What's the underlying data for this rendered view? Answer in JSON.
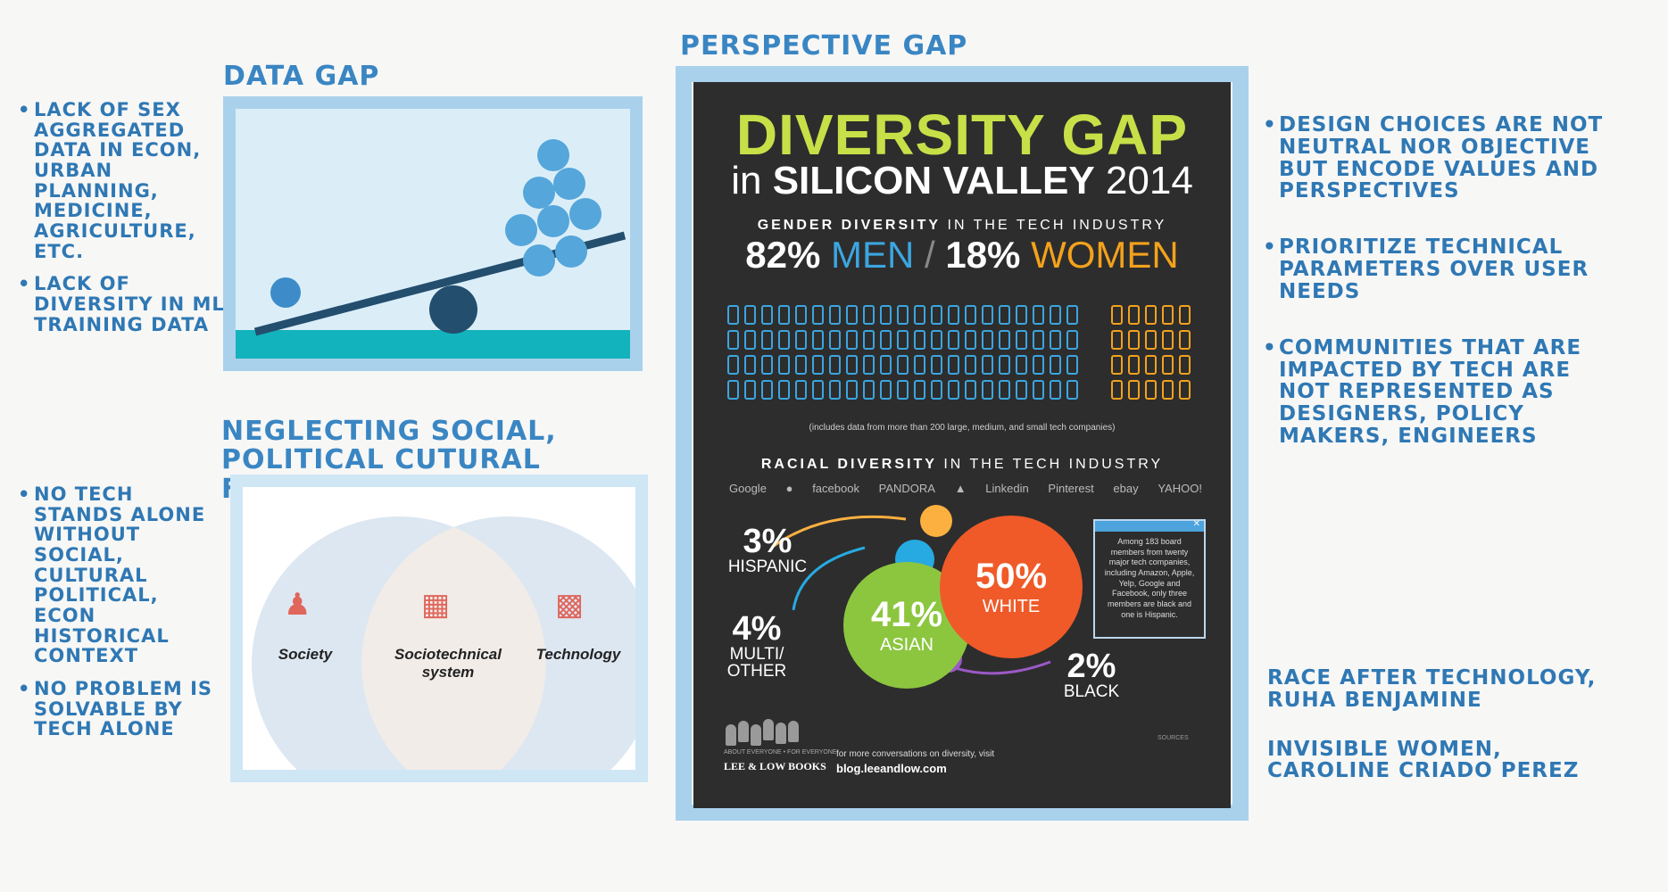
{
  "headings": {
    "data_gap": "DATA GAP",
    "neglecting": "NEGLECTING SOCIAL, POLITICAL CUTURAL FACTORS",
    "perspective_gap": "PERSPECTIVE GAP"
  },
  "data_gap_notes": [
    "LACK OF SEX AGGREGATED DATA IN ECON, URBAN PLANNING, MEDICINE, AGRICULTURE, ETC.",
    "LACK OF DIVERSITY IN ML TRAINING DATA"
  ],
  "neglecting_notes": [
    "NO TECH STANDS ALONE WITHOUT SOCIAL, CULTURAL POLITICAL, ECON HISTORICAL CONTEXT",
    "NO PROBLEM IS SOLVABLE BY TECH ALONE"
  ],
  "venn": {
    "left": "Society",
    "center": "Sociotechnical system",
    "right": "Technology"
  },
  "perspective_notes": [
    "DESIGN CHOICES ARE NOT NEUTRAL NOR OBJECTIVE BUT ENCODE VALUES AND PERSPECTIVES",
    "PRIORITIZE TECHNICAL PARAMETERS OVER USER NEEDS",
    "COMMUNITIES THAT ARE IMPACTED BY TECH ARE NOT REPRESENTED AS DESIGNERS, POLICY MAKERS, ENGINEERS"
  ],
  "references": [
    "RACE AFTER TECHNOLOGY, RUHA BENJAMINE",
    "INVISIBLE WOMEN, CAROLINE CRIADO PEREZ"
  ],
  "infographic": {
    "title": "DIVERSITY GAP",
    "subtitle_in": "in",
    "subtitle_main": "SILICON VALLEY",
    "subtitle_year": "2014",
    "gender_heading_bold": "GENDER DIVERSITY",
    "gender_heading_rest": "IN THE TECH INDUSTRY",
    "men_pct": "82%",
    "men_label": "MEN",
    "slash": "/",
    "women_pct": "18%",
    "women_label": "WOMEN",
    "gender_note": "(includes data from more than 200 large, medium, and small tech companies)",
    "race_heading_bold": "RACIAL DIVERSITY",
    "race_heading_rest": "IN THE TECH INDUSTRY",
    "logos": [
      "Google",
      "",
      "facebook",
      "PANDORA",
      "",
      "Linkedin",
      "Pinterest",
      "ebay",
      "YAHOO!"
    ],
    "race": [
      {
        "pct": "3%",
        "label": "HISPANIC"
      },
      {
        "pct": "4%",
        "label": "MULTI/ OTHER"
      },
      {
        "pct": "41%",
        "label": "ASIAN"
      },
      {
        "pct": "50%",
        "label": "WHITE"
      },
      {
        "pct": "2%",
        "label": "BLACK"
      }
    ],
    "board_note": "Among 183 board members from twenty major tech companies, including Amazon, Apple, Yelp, Google and Facebook, only three members are black and one is Hispanic.",
    "publisher": "LEE & LOW BOOKS",
    "publisher_tag": "ABOUT EVERYONE • FOR EVERYONE",
    "footer_text": "for more conversations on diversity, visit",
    "footer_url": "blog.leeandlow.com",
    "sources_label": "SOURCES"
  },
  "colors": {
    "ink": "#2f78b4",
    "frame": "#a9d1ec",
    "men": "#3ba6e0",
    "women": "#f3a21c",
    "asian": "#8cc63f",
    "white": "#ef5a28",
    "hispanic": "#fbb040",
    "multi": "#27aae1",
    "black": "#9b59c6"
  }
}
